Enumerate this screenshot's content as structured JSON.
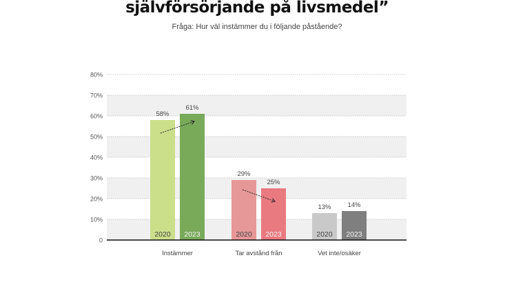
{
  "title": "självförsörjande på livsmedel”",
  "subtitle": "Fråga: Hur väl instämmer du i följande påstående?",
  "chart_data": {
    "type": "bar",
    "title": "självförsörjande på livsmedel”",
    "subtitle": "Fråga: Hur väl instämmer du i följande påstående?",
    "categories": [
      "Instämmer",
      "Tar avstånd från",
      "Vet inte/osäker"
    ],
    "series": [
      {
        "name": "2020",
        "values": [
          58,
          29,
          13
        ],
        "colors": [
          "#cbde8a",
          "#e69797",
          "#c9c9c9"
        ]
      },
      {
        "name": "2023",
        "values": [
          61,
          25,
          14
        ],
        "colors": [
          "#79aa5a",
          "#e97a80",
          "#7f7f7f"
        ]
      }
    ],
    "data_labels": [
      [
        "58%",
        "29%",
        "13%"
      ],
      [
        "61%",
        "25%",
        "14%"
      ]
    ],
    "yticks": [
      "0",
      "10%",
      "20%",
      "30%",
      "40%",
      "50%",
      "60%",
      "70%",
      "80%"
    ],
    "ylim": [
      0,
      80
    ],
    "grid": true,
    "trend_arrows": [
      "up",
      "down"
    ]
  }
}
